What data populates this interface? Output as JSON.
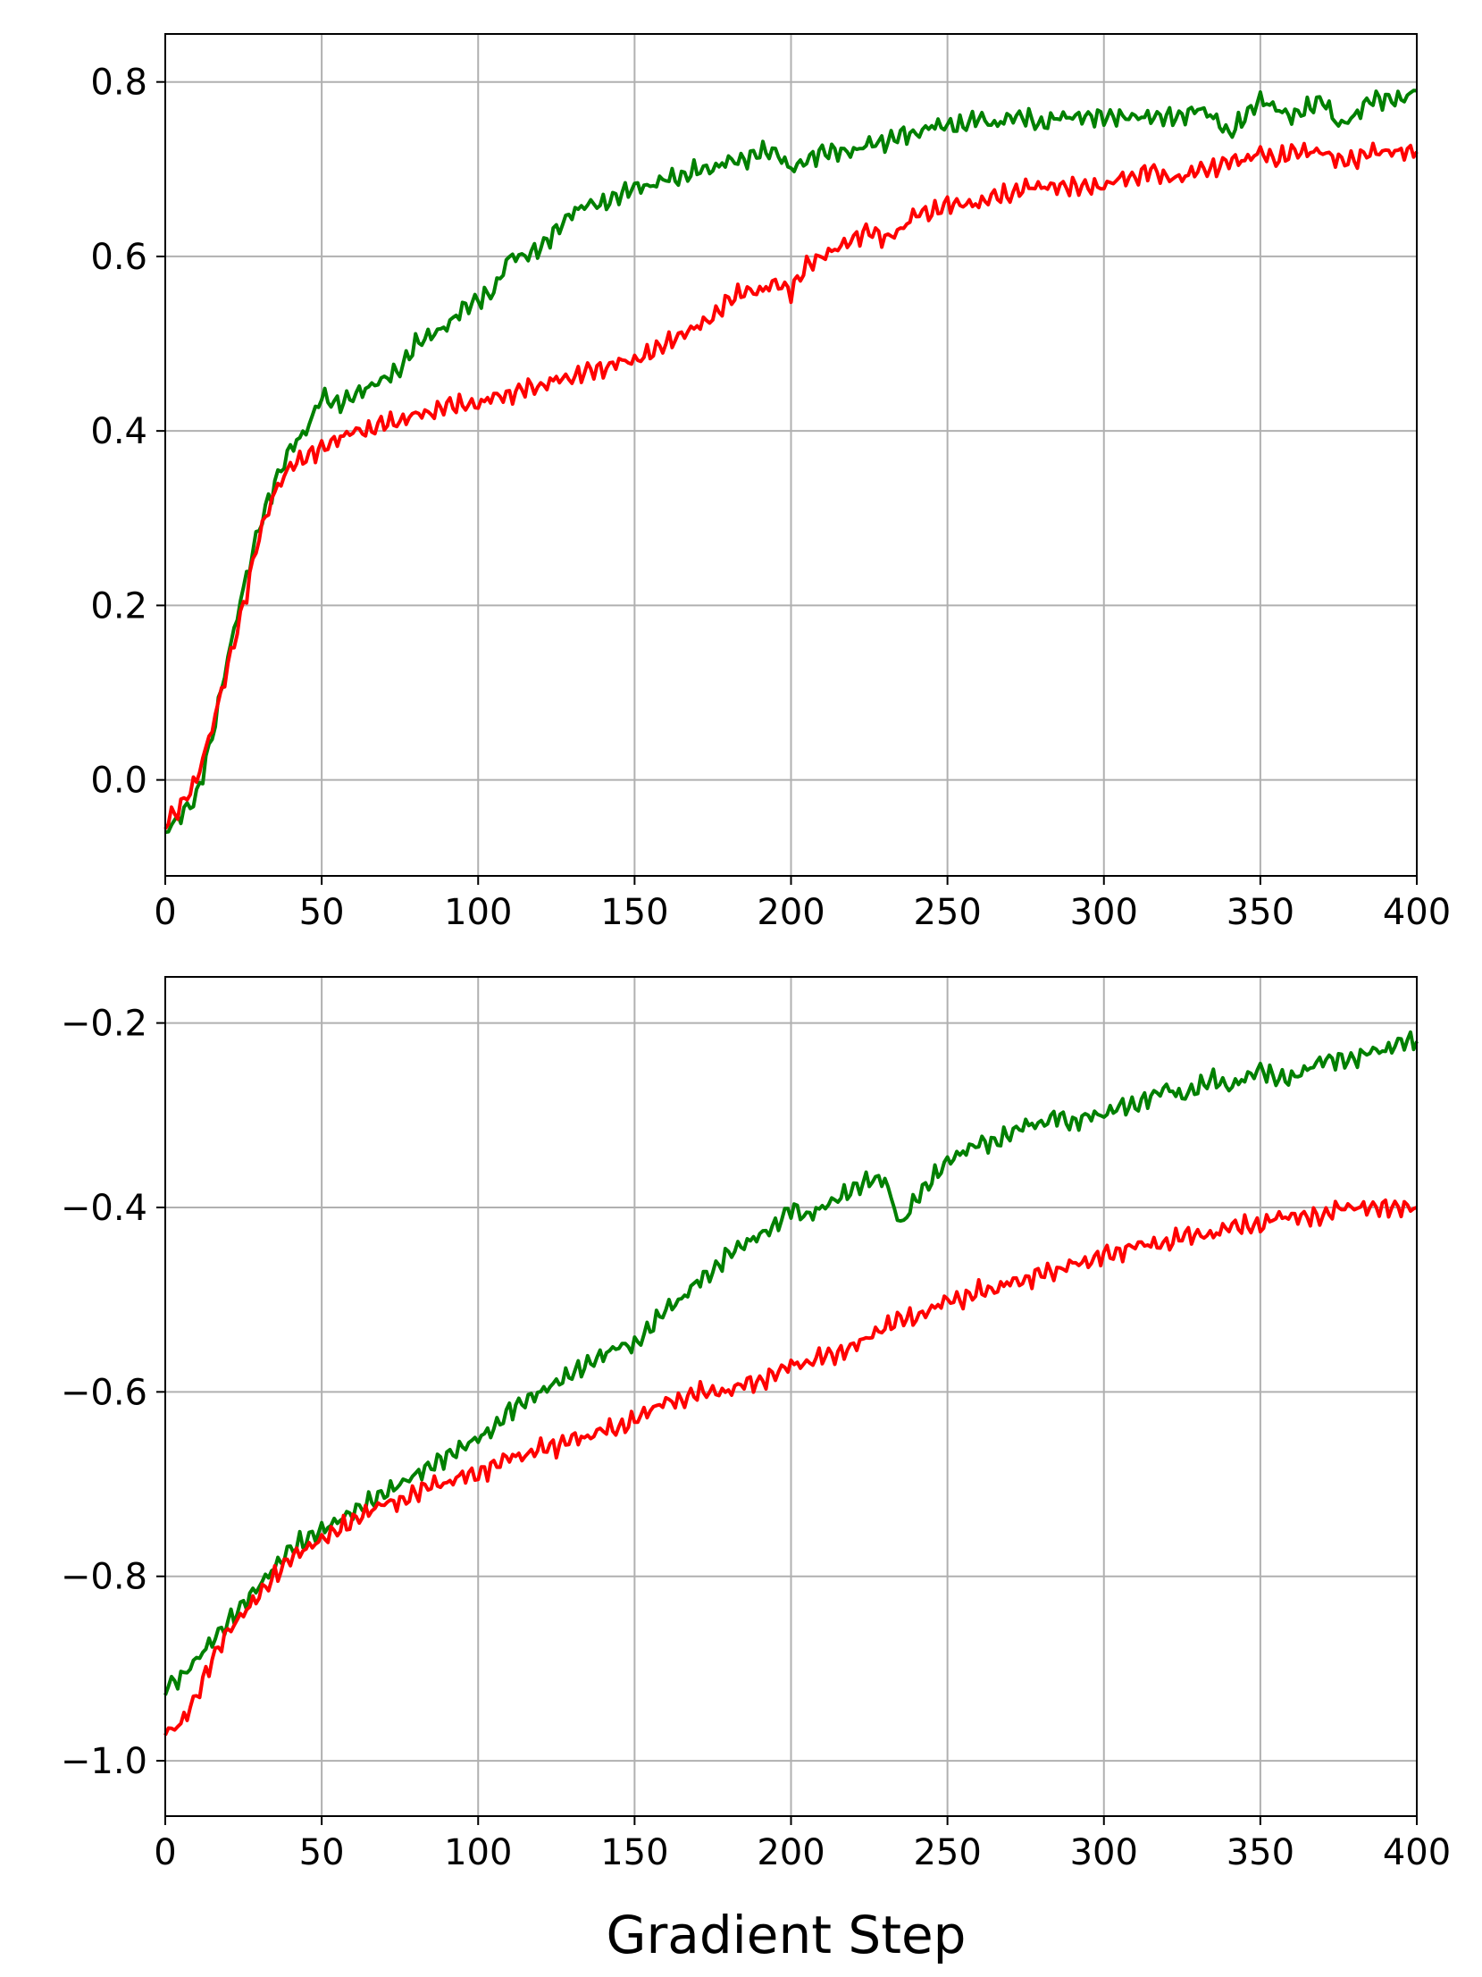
{
  "chart_data": [
    {
      "type": "line",
      "title": "",
      "xlabel": "",
      "ylabel": "",
      "xlim": [
        0,
        400
      ],
      "ylim": [
        -0.11,
        0.855
      ],
      "xticks": [
        0,
        50,
        100,
        150,
        200,
        250,
        300,
        350,
        400
      ],
      "xtick_labels": [
        "0",
        "50",
        "100",
        "150",
        "200",
        "250",
        "300",
        "350",
        "400"
      ],
      "yticks": [
        0.0,
        0.2,
        0.4,
        0.6,
        0.8
      ],
      "ytick_labels": [
        "0.0",
        "0.2",
        "0.4",
        "0.6",
        "0.8"
      ],
      "grid": true,
      "legend": "none",
      "series": [
        {
          "color": "#008000",
          "x": [
            0,
            5,
            10,
            15,
            20,
            25,
            30,
            35,
            40,
            45,
            50,
            55,
            60,
            65,
            70,
            75,
            80,
            85,
            90,
            95,
            100,
            105,
            110,
            115,
            120,
            125,
            130,
            135,
            140,
            145,
            150,
            155,
            160,
            165,
            170,
            175,
            180,
            185,
            190,
            195,
            200,
            205,
            210,
            215,
            220,
            225,
            230,
            235,
            240,
            245,
            250,
            255,
            260,
            265,
            270,
            275,
            280,
            285,
            290,
            295,
            300,
            305,
            310,
            315,
            320,
            325,
            330,
            335,
            340,
            345,
            350,
            355,
            360,
            365,
            370,
            375,
            380,
            385,
            390,
            395,
            400
          ],
          "y": [
            -0.06,
            -0.04,
            -0.02,
            0.05,
            0.14,
            0.22,
            0.29,
            0.34,
            0.38,
            0.4,
            0.44,
            0.43,
            0.44,
            0.45,
            0.46,
            0.47,
            0.5,
            0.51,
            0.52,
            0.54,
            0.55,
            0.56,
            0.6,
            0.6,
            0.61,
            0.63,
            0.65,
            0.66,
            0.66,
            0.67,
            0.68,
            0.68,
            0.69,
            0.69,
            0.7,
            0.7,
            0.71,
            0.71,
            0.72,
            0.72,
            0.7,
            0.71,
            0.72,
            0.72,
            0.72,
            0.73,
            0.73,
            0.74,
            0.74,
            0.75,
            0.75,
            0.75,
            0.76,
            0.75,
            0.76,
            0.76,
            0.75,
            0.76,
            0.76,
            0.76,
            0.76,
            0.76,
            0.76,
            0.76,
            0.76,
            0.76,
            0.77,
            0.76,
            0.74,
            0.76,
            0.78,
            0.77,
            0.76,
            0.77,
            0.78,
            0.75,
            0.76,
            0.78,
            0.78,
            0.78,
            0.79
          ]
        },
        {
          "color": "#ff0000",
          "x": [
            0,
            5,
            10,
            15,
            20,
            25,
            30,
            35,
            40,
            45,
            50,
            55,
            60,
            65,
            70,
            75,
            80,
            85,
            90,
            95,
            100,
            105,
            110,
            115,
            120,
            125,
            130,
            135,
            140,
            145,
            150,
            155,
            160,
            165,
            170,
            175,
            180,
            185,
            190,
            195,
            200,
            205,
            210,
            215,
            220,
            225,
            230,
            235,
            240,
            245,
            250,
            255,
            260,
            265,
            270,
            275,
            280,
            285,
            290,
            295,
            300,
            305,
            310,
            315,
            320,
            325,
            330,
            335,
            340,
            345,
            350,
            355,
            360,
            365,
            370,
            375,
            380,
            385,
            390,
            395,
            400
          ],
          "y": [
            -0.05,
            -0.03,
            0.0,
            0.06,
            0.13,
            0.2,
            0.28,
            0.33,
            0.36,
            0.37,
            0.38,
            0.39,
            0.4,
            0.4,
            0.41,
            0.41,
            0.42,
            0.42,
            0.43,
            0.43,
            0.43,
            0.44,
            0.44,
            0.45,
            0.45,
            0.46,
            0.46,
            0.47,
            0.47,
            0.48,
            0.48,
            0.49,
            0.5,
            0.51,
            0.52,
            0.53,
            0.55,
            0.56,
            0.56,
            0.57,
            0.56,
            0.59,
            0.6,
            0.61,
            0.62,
            0.63,
            0.62,
            0.63,
            0.65,
            0.65,
            0.66,
            0.66,
            0.66,
            0.67,
            0.67,
            0.68,
            0.68,
            0.68,
            0.68,
            0.68,
            0.68,
            0.69,
            0.69,
            0.7,
            0.69,
            0.69,
            0.7,
            0.7,
            0.71,
            0.71,
            0.72,
            0.71,
            0.72,
            0.72,
            0.72,
            0.71,
            0.71,
            0.72,
            0.72,
            0.72,
            0.72
          ]
        }
      ]
    },
    {
      "type": "line",
      "title": "",
      "xlabel": "Gradient Step",
      "ylabel": "",
      "xlim": [
        0,
        400
      ],
      "ylim": [
        -1.06,
        -0.15
      ],
      "xticks": [
        0,
        50,
        100,
        150,
        200,
        250,
        300,
        350,
        400
      ],
      "xtick_labels": [
        "0",
        "50",
        "100",
        "150",
        "200",
        "250",
        "300",
        "350",
        "400"
      ],
      "yticks": [
        -1.0,
        -0.8,
        -0.6,
        -0.4,
        -0.2
      ],
      "ytick_labels": [
        "−1.0",
        "−0.8",
        "−0.6",
        "−0.4",
        "−0.2"
      ],
      "grid": true,
      "legend": "none",
      "series": [
        {
          "color": "#008000",
          "x": [
            0,
            5,
            10,
            15,
            20,
            25,
            30,
            35,
            40,
            45,
            50,
            55,
            60,
            65,
            70,
            75,
            80,
            85,
            90,
            95,
            100,
            105,
            110,
            115,
            120,
            125,
            130,
            135,
            140,
            145,
            150,
            155,
            160,
            165,
            170,
            175,
            180,
            185,
            190,
            195,
            200,
            205,
            210,
            215,
            220,
            225,
            230,
            235,
            240,
            245,
            250,
            255,
            260,
            265,
            270,
            275,
            280,
            285,
            290,
            295,
            300,
            305,
            310,
            315,
            320,
            325,
            330,
            335,
            340,
            345,
            350,
            355,
            360,
            365,
            370,
            375,
            380,
            385,
            390,
            395,
            400
          ],
          "y": [
            -0.92,
            -0.91,
            -0.89,
            -0.87,
            -0.85,
            -0.83,
            -0.81,
            -0.79,
            -0.77,
            -0.76,
            -0.75,
            -0.74,
            -0.73,
            -0.72,
            -0.71,
            -0.7,
            -0.69,
            -0.68,
            -0.67,
            -0.66,
            -0.65,
            -0.64,
            -0.62,
            -0.61,
            -0.6,
            -0.59,
            -0.58,
            -0.57,
            -0.56,
            -0.55,
            -0.55,
            -0.53,
            -0.51,
            -0.5,
            -0.48,
            -0.47,
            -0.45,
            -0.44,
            -0.43,
            -0.42,
            -0.4,
            -0.41,
            -0.4,
            -0.39,
            -0.38,
            -0.37,
            -0.37,
            -0.42,
            -0.39,
            -0.37,
            -0.35,
            -0.34,
            -0.33,
            -0.33,
            -0.32,
            -0.31,
            -0.31,
            -0.3,
            -0.31,
            -0.3,
            -0.3,
            -0.29,
            -0.29,
            -0.28,
            -0.27,
            -0.28,
            -0.27,
            -0.26,
            -0.27,
            -0.26,
            -0.25,
            -0.26,
            -0.26,
            -0.25,
            -0.24,
            -0.24,
            -0.24,
            -0.23,
            -0.23,
            -0.22,
            -0.22
          ]
        },
        {
          "color": "#ff0000",
          "x": [
            0,
            5,
            10,
            15,
            20,
            25,
            30,
            35,
            40,
            45,
            50,
            55,
            60,
            65,
            70,
            75,
            80,
            85,
            90,
            95,
            100,
            105,
            110,
            115,
            120,
            125,
            130,
            135,
            140,
            145,
            150,
            155,
            160,
            165,
            170,
            175,
            180,
            185,
            190,
            195,
            200,
            205,
            210,
            215,
            220,
            225,
            230,
            235,
            240,
            245,
            250,
            255,
            260,
            265,
            270,
            275,
            280,
            285,
            290,
            295,
            300,
            305,
            310,
            315,
            320,
            325,
            330,
            335,
            340,
            345,
            350,
            355,
            360,
            365,
            370,
            375,
            380,
            385,
            390,
            395,
            400
          ],
          "y": [
            -0.97,
            -0.96,
            -0.93,
            -0.89,
            -0.86,
            -0.84,
            -0.82,
            -0.8,
            -0.78,
            -0.77,
            -0.76,
            -0.75,
            -0.74,
            -0.73,
            -0.72,
            -0.72,
            -0.71,
            -0.7,
            -0.7,
            -0.69,
            -0.69,
            -0.68,
            -0.67,
            -0.67,
            -0.66,
            -0.66,
            -0.65,
            -0.65,
            -0.64,
            -0.64,
            -0.63,
            -0.62,
            -0.61,
            -0.61,
            -0.6,
            -0.6,
            -0.6,
            -0.59,
            -0.59,
            -0.58,
            -0.57,
            -0.57,
            -0.56,
            -0.56,
            -0.55,
            -0.54,
            -0.53,
            -0.52,
            -0.52,
            -0.51,
            -0.5,
            -0.5,
            -0.49,
            -0.49,
            -0.48,
            -0.48,
            -0.47,
            -0.47,
            -0.46,
            -0.46,
            -0.45,
            -0.45,
            -0.44,
            -0.44,
            -0.44,
            -0.43,
            -0.43,
            -0.43,
            -0.42,
            -0.42,
            -0.42,
            -0.41,
            -0.41,
            -0.41,
            -0.41,
            -0.4,
            -0.4,
            -0.4,
            -0.4,
            -0.4,
            -0.4
          ]
        }
      ]
    }
  ]
}
